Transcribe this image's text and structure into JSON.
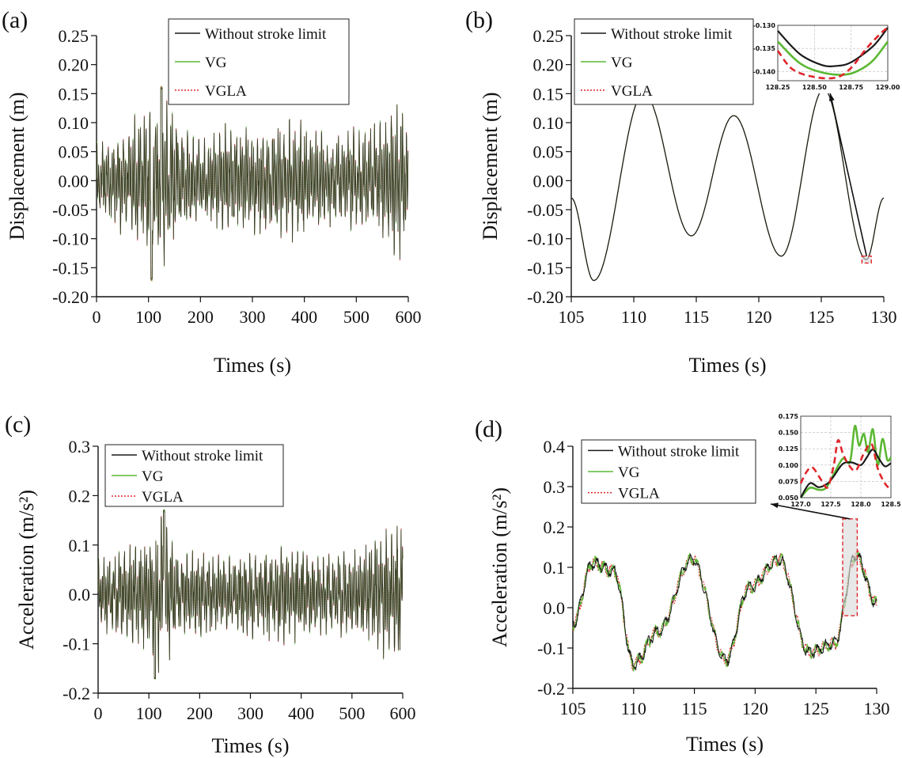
{
  "colors": {
    "without": "#1a1a1a",
    "vg": "#5cb834",
    "vgla": "#e0262b",
    "highlight": "#d9d9d9"
  },
  "chart_data": [
    {
      "panel": "(a)",
      "type": "line",
      "xlabel": "Times (s)",
      "ylabel": "Displacement (m)",
      "xlim": [
        0,
        600
      ],
      "ylim": [
        -0.2,
        0.25
      ],
      "xticks": [
        0,
        100,
        200,
        300,
        400,
        500,
        600
      ],
      "yticks": [
        -0.2,
        -0.15,
        -0.1,
        -0.05,
        0.0,
        0.05,
        0.1,
        0.15,
        0.2,
        0.25
      ],
      "xtick_labels": [
        "0",
        "100",
        "200",
        "300",
        "400",
        "500",
        "600"
      ],
      "ytick_labels": [
        "-0.20",
        "-0.15",
        "-0.10",
        "-0.05",
        "0.00",
        "0.05",
        "0.10",
        "0.15",
        "0.20",
        "0.25"
      ],
      "legend": [
        "Without stroke limit",
        "VG",
        "VGLA"
      ],
      "legend_position": "top-right",
      "signal": "dense-oscillation",
      "envelope": [
        [
          0,
          0.06
        ],
        [
          60,
          0.1
        ],
        [
          100,
          0.13
        ],
        [
          125,
          0.16
        ],
        [
          150,
          0.12
        ],
        [
          200,
          0.07
        ],
        [
          260,
          0.1
        ],
        [
          300,
          0.09
        ],
        [
          360,
          0.11
        ],
        [
          400,
          0.1
        ],
        [
          460,
          0.08
        ],
        [
          520,
          0.09
        ],
        [
          560,
          0.12
        ],
        [
          580,
          0.14
        ],
        [
          600,
          0.11
        ]
      ],
      "min_point": [
        106,
        -0.17
      ],
      "max_point": [
        125,
        0.16
      ]
    },
    {
      "panel": "(b)",
      "type": "line",
      "xlabel": "Times (s)",
      "ylabel": "Displacement (m)",
      "xlim": [
        105,
        130
      ],
      "ylim": [
        -0.2,
        0.25
      ],
      "xticks": [
        105,
        110,
        115,
        120,
        125,
        130
      ],
      "yticks": [
        -0.2,
        -0.15,
        -0.1,
        -0.05,
        0.0,
        0.05,
        0.1,
        0.15,
        0.2,
        0.25
      ],
      "xtick_labels": [
        "105",
        "110",
        "115",
        "120",
        "125",
        "130"
      ],
      "ytick_labels": [
        "-0.20",
        "-0.15",
        "-0.10",
        "-0.05",
        "0.00",
        "0.05",
        "0.10",
        "0.15",
        "0.20",
        "0.25"
      ],
      "legend": [
        "Without stroke limit",
        "VG",
        "VGLA"
      ],
      "legend_position": "top-left",
      "signal": "extrema",
      "extrema": [
        [
          105,
          -0.03
        ],
        [
          106.8,
          -0.172
        ],
        [
          110.8,
          0.151
        ],
        [
          114.6,
          -0.095
        ],
        [
          118,
          0.112
        ],
        [
          121.8,
          -0.13
        ],
        [
          125.2,
          0.158
        ],
        [
          128.6,
          -0.136
        ],
        [
          130,
          -0.03
        ]
      ],
      "zoom_region": {
        "x": [
          128.25,
          129.0
        ],
        "y": [
          -0.142,
          -0.13
        ]
      },
      "inset": {
        "type": "line",
        "xlim": [
          128.25,
          129.0
        ],
        "ylim": [
          -0.142,
          -0.13
        ],
        "xticks": [
          128.25,
          128.5,
          128.75,
          129.0
        ],
        "yticks": [
          -0.13,
          -0.135,
          -0.14
        ],
        "xtick_labels": [
          "128.25",
          "128.50",
          "128.75",
          "129.00"
        ],
        "ytick_labels": [
          "-0.130",
          "-0.135",
          "-0.140"
        ],
        "series": [
          {
            "name": "Without stroke limit",
            "x": [
              128.25,
              128.4,
              128.55,
              128.65,
              128.75,
              128.9,
              129.0
            ],
            "y": [
              -0.1312,
              -0.1362,
              -0.1386,
              -0.1388,
              -0.138,
              -0.1345,
              -0.1305
            ]
          },
          {
            "name": "VG",
            "x": [
              128.25,
              128.4,
              128.55,
              128.7,
              128.8,
              128.9,
              129.0
            ],
            "y": [
              -0.1335,
              -0.1382,
              -0.1402,
              -0.1407,
              -0.1398,
              -0.1376,
              -0.1335
            ]
          },
          {
            "name": "VGLA",
            "x": [
              128.25,
              128.35,
              128.5,
              128.65,
              128.75,
              128.85,
              128.95,
              129.0
            ],
            "y": [
              -0.1355,
              -0.1395,
              -0.1412,
              -0.1413,
              -0.1392,
              -0.1352,
              -0.1318,
              -0.1305
            ]
          }
        ]
      }
    },
    {
      "panel": "(c)",
      "type": "line",
      "xlabel": "Times (s)",
      "ylabel": "Acceleration (m/s²)",
      "xlim": [
        0,
        600
      ],
      "ylim": [
        -0.2,
        0.3
      ],
      "xticks": [
        0,
        100,
        200,
        300,
        400,
        500,
        600
      ],
      "yticks": [
        -0.2,
        -0.1,
        0.0,
        0.1,
        0.2,
        0.3
      ],
      "xtick_labels": [
        "0",
        "100",
        "200",
        "300",
        "400",
        "500",
        "600"
      ],
      "ytick_labels": [
        "-0.2",
        "-0.1",
        "0.0",
        "0.1",
        "0.2",
        "0.3"
      ],
      "legend": [
        "Without stroke limit",
        "VG",
        "VGLA"
      ],
      "legend_position": "top-center",
      "signal": "dense-oscillation",
      "envelope": [
        [
          0,
          0.08
        ],
        [
          60,
          0.1
        ],
        [
          110,
          0.14
        ],
        [
          130,
          0.165
        ],
        [
          160,
          0.1
        ],
        [
          220,
          0.08
        ],
        [
          300,
          0.09
        ],
        [
          380,
          0.1
        ],
        [
          430,
          0.08
        ],
        [
          500,
          0.09
        ],
        [
          560,
          0.12
        ],
        [
          585,
          0.15
        ],
        [
          600,
          0.14
        ]
      ],
      "min_point": [
        112,
        -0.17
      ],
      "max_point": [
        130,
        0.17
      ]
    },
    {
      "panel": "(d)",
      "type": "line",
      "xlabel": "Times (s)",
      "ylabel": "Acceleration (m/s²)",
      "xlim": [
        105,
        130
      ],
      "ylim": [
        -0.2,
        0.4
      ],
      "xticks": [
        105,
        110,
        115,
        120,
        125,
        130
      ],
      "yticks": [
        -0.2,
        -0.1,
        0.0,
        0.1,
        0.2,
        0.3,
        0.4
      ],
      "xtick_labels": [
        "105",
        "110",
        "115",
        "120",
        "125",
        "130"
      ],
      "ytick_labels": [
        "-0.2",
        "-0.1",
        "0.0",
        "0.1",
        "0.2",
        "0.3",
        "0.4"
      ],
      "legend": [
        "Without stroke limit",
        "VG",
        "VGLA"
      ],
      "legend_position": "top-left",
      "signal": "extrema-with-jitter",
      "extrema": [
        [
          105,
          -0.04
        ],
        [
          106.6,
          0.11
        ],
        [
          108.4,
          0.09
        ],
        [
          110,
          -0.14
        ],
        [
          112,
          -0.06
        ],
        [
          114.8,
          0.12
        ],
        [
          117.6,
          -0.13
        ],
        [
          119.5,
          0.05
        ],
        [
          122,
          0.12
        ],
        [
          124.4,
          -0.11
        ],
        [
          126.5,
          -0.09
        ],
        [
          128.3,
          0.13
        ],
        [
          130,
          0.01
        ]
      ],
      "zoom_region": {
        "x": [
          127.2,
          128.4
        ],
        "y": [
          -0.02,
          0.22
        ]
      },
      "inset": {
        "type": "line",
        "xlim": [
          127.0,
          128.5
        ],
        "ylim": [
          0.05,
          0.175
        ],
        "xticks": [
          127.0,
          127.5,
          128.0,
          128.5
        ],
        "yticks": [
          0.05,
          0.075,
          0.1,
          0.125,
          0.15,
          0.175
        ],
        "xtick_labels": [
          "127.0",
          "127.5",
          "128.0",
          "128.5"
        ],
        "ytick_labels": [
          "0.050",
          "0.075",
          "0.100",
          "0.125",
          "0.150",
          "0.175"
        ],
        "series": [
          {
            "name": "Without stroke limit",
            "x": [
              127.0,
              127.15,
              127.3,
              127.45,
              127.55,
              127.7,
              127.85,
              128.0,
              128.1,
              128.2,
              128.3,
              128.4,
              128.5
            ],
            "y": [
              0.05,
              0.072,
              0.066,
              0.072,
              0.083,
              0.102,
              0.104,
              0.1,
              0.112,
              0.124,
              0.11,
              0.098,
              0.103
            ]
          },
          {
            "name": "VG",
            "x": [
              127.0,
              127.15,
              127.3,
              127.42,
              127.55,
              127.7,
              127.82,
              127.9,
              127.97,
              128.05,
              128.12,
              128.2,
              128.28,
              128.36,
              128.44,
              128.5
            ],
            "y": [
              0.05,
              0.065,
              0.062,
              0.065,
              0.086,
              0.11,
              0.105,
              0.16,
              0.13,
              0.148,
              0.12,
              0.155,
              0.1,
              0.14,
              0.108,
              0.112
            ]
          },
          {
            "name": "VGLA",
            "x": [
              127.0,
              127.1,
              127.2,
              127.35,
              127.45,
              127.55,
              127.62,
              127.7,
              127.8,
              127.92,
              128.05,
              128.18,
              128.28,
              128.4,
              128.5
            ],
            "y": [
              0.072,
              0.09,
              0.096,
              0.076,
              0.066,
              0.1,
              0.138,
              0.118,
              0.1,
              0.092,
              0.118,
              0.132,
              0.095,
              0.072,
              0.062
            ]
          }
        ]
      }
    }
  ]
}
